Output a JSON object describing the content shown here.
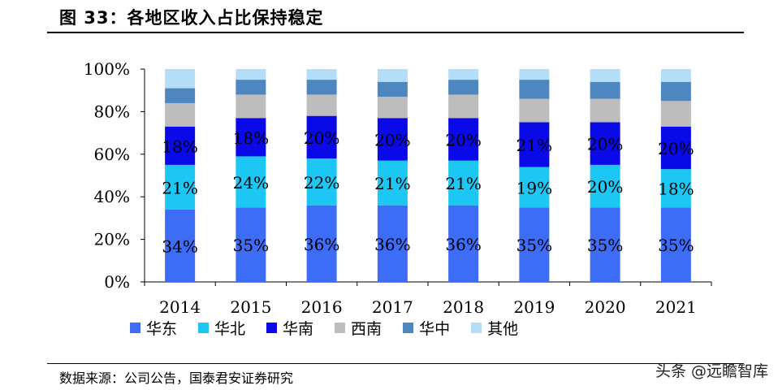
{
  "title": "图 33：各地区收入占比保持稳定",
  "source": "数据来源：公司公告，国泰君安证券研究",
  "watermark": "头条 @远瞻智库",
  "colors": {
    "华东": "#3d6cf6",
    "华北": "#1cc8f3",
    "华南": "#0a0ae8",
    "西南": "#bdbdbd",
    "华中": "#4e86c0",
    "其他": "#b4ddf7"
  },
  "chart_data": {
    "type": "bar",
    "stacked": true,
    "categories": [
      "2014",
      "2015",
      "2016",
      "2017",
      "2018",
      "2019",
      "2020",
      "2021"
    ],
    "ylim": [
      0,
      100
    ],
    "yticks": [
      "0%",
      "20%",
      "40%",
      "60%",
      "80%",
      "100%"
    ],
    "series": [
      {
        "name": "华东",
        "values": [
          34,
          35,
          36,
          36,
          36,
          35,
          35,
          35
        ],
        "labels": [
          "34%",
          "35%",
          "36%",
          "36%",
          "36%",
          "35%",
          "35%",
          "35%"
        ]
      },
      {
        "name": "华北",
        "values": [
          21,
          24,
          22,
          21,
          21,
          19,
          20,
          18
        ],
        "labels": [
          "21%",
          "24%",
          "22%",
          "21%",
          "21%",
          "19%",
          "20%",
          "18%"
        ]
      },
      {
        "name": "华南",
        "values": [
          18,
          18,
          20,
          20,
          20,
          21,
          20,
          20
        ],
        "labels": [
          "18%",
          "18%",
          "20%",
          "20%",
          "20%",
          "21%",
          "20%",
          "20%"
        ]
      },
      {
        "name": "西南",
        "values": [
          11,
          11,
          10,
          10,
          11,
          11,
          11,
          12
        ]
      },
      {
        "name": "华中",
        "values": [
          7,
          7,
          7,
          7,
          7,
          9,
          8,
          9
        ]
      },
      {
        "name": "其他",
        "values": [
          9,
          5,
          5,
          6,
          5,
          5,
          6,
          6
        ]
      }
    ],
    "legend": "bottom",
    "grid": false
  }
}
